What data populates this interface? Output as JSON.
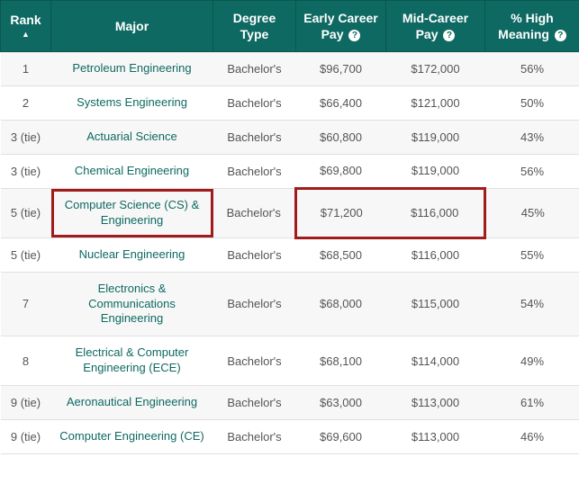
{
  "table": {
    "header_bg": "#0d6962",
    "header_fg": "#ffffff",
    "row_stripe_odd": "#f7f7f7",
    "row_stripe_even": "#ffffff",
    "major_color": "#0d6962",
    "highlight_color": "#a11b1b",
    "columns": {
      "rank": {
        "label": "Rank",
        "sort_indicator": "▲"
      },
      "major": {
        "label": "Major"
      },
      "degree": {
        "label": "Degree Type"
      },
      "early": {
        "label": "Early Career Pay",
        "info": "?"
      },
      "mid": {
        "label": "Mid-Career Pay",
        "info": "?"
      },
      "meaning": {
        "label": "% High Meaning",
        "info": "?"
      }
    },
    "rows": [
      {
        "rank": "1",
        "major": "Petroleum Engineering",
        "degree": "Bachelor's",
        "early": "$96,700",
        "mid": "$172,000",
        "meaning": "56%"
      },
      {
        "rank": "2",
        "major": "Systems Engineering",
        "degree": "Bachelor's",
        "early": "$66,400",
        "mid": "$121,000",
        "meaning": "50%"
      },
      {
        "rank": "3 (tie)",
        "major": "Actuarial Science",
        "degree": "Bachelor's",
        "early": "$60,800",
        "mid": "$119,000",
        "meaning": "43%"
      },
      {
        "rank": "3 (tie)",
        "major": "Chemical Engineering",
        "degree": "Bachelor's",
        "early": "$69,800",
        "mid": "$119,000",
        "meaning": "56%"
      },
      {
        "rank": "5 (tie)",
        "major": "Computer Science (CS) & Engineering",
        "degree": "Bachelor's",
        "early": "$71,200",
        "mid": "$116,000",
        "meaning": "45%",
        "highlight": true
      },
      {
        "rank": "5 (tie)",
        "major": "Nuclear Engineering",
        "degree": "Bachelor's",
        "early": "$68,500",
        "mid": "$116,000",
        "meaning": "55%"
      },
      {
        "rank": "7",
        "major": "Electronics & Communications Engineering",
        "degree": "Bachelor's",
        "early": "$68,000",
        "mid": "$115,000",
        "meaning": "54%"
      },
      {
        "rank": "8",
        "major": "Electrical & Computer Engineering (ECE)",
        "degree": "Bachelor's",
        "early": "$68,100",
        "mid": "$114,000",
        "meaning": "49%"
      },
      {
        "rank": "9 (tie)",
        "major": "Aeronautical Engineering",
        "degree": "Bachelor's",
        "early": "$63,000",
        "mid": "$113,000",
        "meaning": "61%"
      },
      {
        "rank": "9 (tie)",
        "major": "Computer Engineering (CE)",
        "degree": "Bachelor's",
        "early": "$69,600",
        "mid": "$113,000",
        "meaning": "46%"
      }
    ]
  }
}
